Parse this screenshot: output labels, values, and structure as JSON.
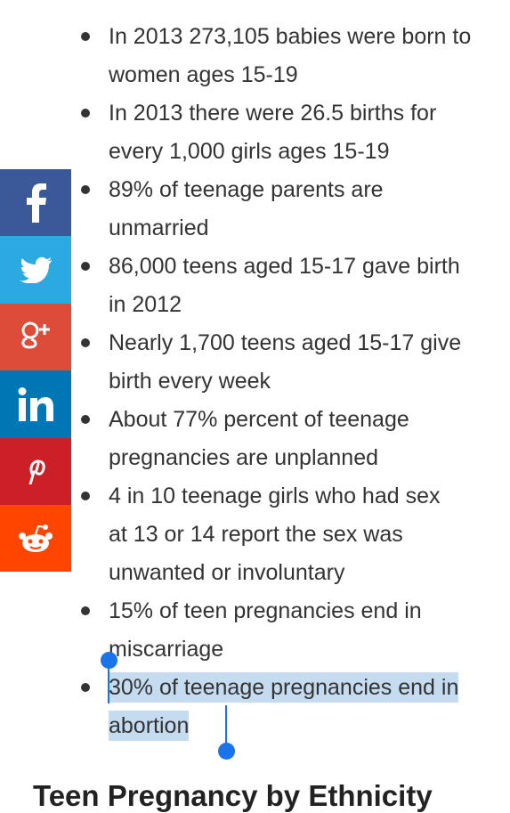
{
  "list": {
    "items": [
      "In 2013 273,105 babies were born to women ages 15-19",
      "In 2013 there were 26.5 births for every 1,000 girls ages 15-19",
      "89% of teenage parents are unmarried",
      "86,000 teens aged 15-17 gave birth in 2012",
      "Nearly 1,700 teens aged 15-17 give birth every week",
      "About 77% percent of teenage pregnancies are unplanned",
      "4 in 10 teenage girls who had sex at 13 or 14 report the sex was unwanted or involuntary",
      "15% of teen pregnancies end in miscarriage",
      "30% of teenage pregnancies end in abortion"
    ]
  },
  "heading": "Teen Pregnancy by Ethnicity"
}
